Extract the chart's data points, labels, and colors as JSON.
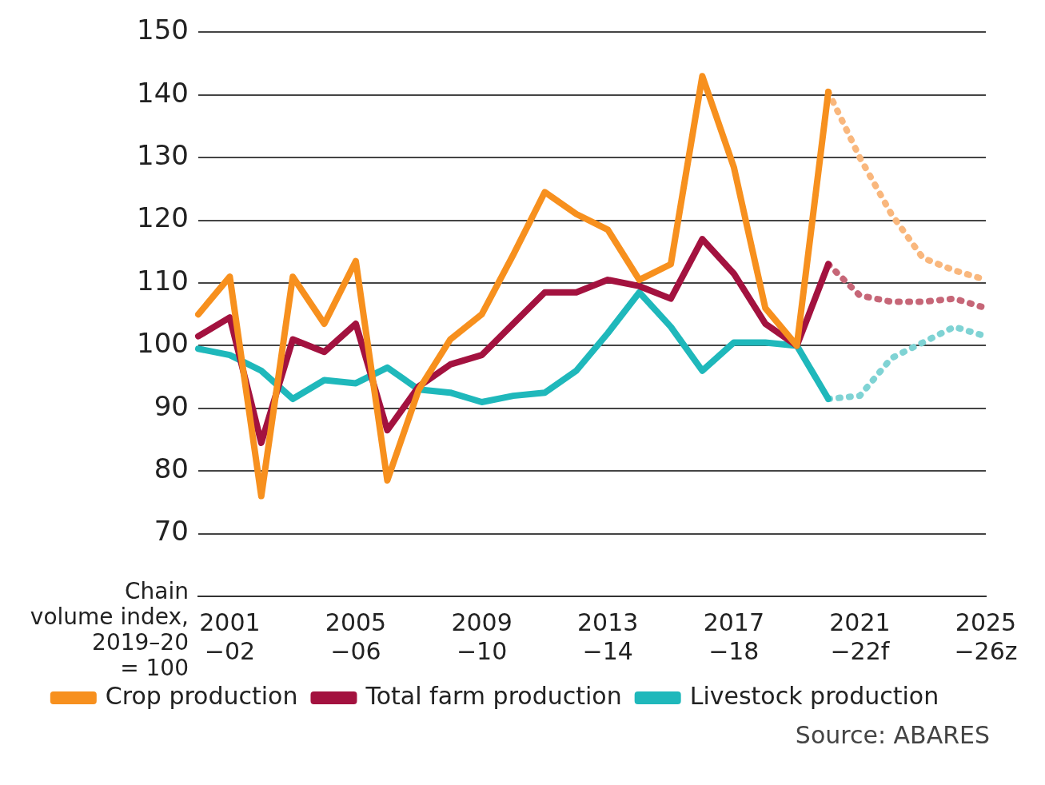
{
  "chart_data": {
    "type": "line",
    "ylabel": "Chain\nvolume index,\n2019–20\n= 100",
    "categories": [
      null,
      "2001\n−02",
      null,
      null,
      null,
      "2005\n−06",
      null,
      null,
      null,
      "2009\n−10",
      null,
      null,
      null,
      "2013\n−14",
      null,
      null,
      null,
      "2017\n−18",
      null,
      null,
      null,
      "2021\n−22f",
      null,
      null,
      null,
      "2025\n−26z"
    ],
    "series": [
      {
        "name": "Crop production",
        "color": "#f7901e",
        "line_style": "solid",
        "values": [
          105,
          111,
          76,
          111,
          103.5,
          113.5,
          78.5,
          93,
          101,
          105,
          114.5,
          124.5,
          121,
          118.5,
          110.5,
          113,
          143,
          128.5,
          106,
          100,
          140.5,
          null,
          null,
          null,
          null,
          null
        ]
      },
      {
        "name": "Total farm production",
        "color": "#a3123f",
        "line_style": "solid",
        "values": [
          101.5,
          104.5,
          84.5,
          101,
          99,
          103.5,
          86.5,
          93.5,
          97,
          98.5,
          103.5,
          108.5,
          108.5,
          110.5,
          109.5,
          107.5,
          117,
          111.5,
          103.5,
          100,
          113,
          null,
          null,
          null,
          null,
          null
        ]
      },
      {
        "name": "Livestock production",
        "color": "#1fb8bb",
        "line_style": "solid",
        "values": [
          99.5,
          98.5,
          96,
          91.5,
          94.5,
          94,
          96.5,
          93,
          92.5,
          91,
          92,
          92.5,
          96,
          102,
          108.5,
          103,
          96,
          100.5,
          100.5,
          100,
          91.5,
          null,
          null,
          null,
          null,
          null
        ]
      },
      {
        "color": "#f9b77d",
        "line_style": "dotted",
        "values": [
          null,
          null,
          null,
          null,
          null,
          null,
          null,
          null,
          null,
          null,
          null,
          null,
          null,
          null,
          null,
          null,
          null,
          null,
          null,
          null,
          140.5,
          130,
          121,
          114,
          112,
          110.5
        ]
      },
      {
        "color": "#c66677",
        "line_style": "dotted",
        "values": [
          null,
          null,
          null,
          null,
          null,
          null,
          null,
          null,
          null,
          null,
          null,
          null,
          null,
          null,
          null,
          null,
          null,
          null,
          null,
          null,
          113,
          108,
          107,
          107,
          107.5,
          106
        ]
      },
      {
        "color": "#7fd3d4",
        "line_style": "dotted",
        "values": [
          null,
          null,
          null,
          null,
          null,
          null,
          null,
          null,
          null,
          null,
          null,
          null,
          null,
          null,
          null,
          null,
          null,
          null,
          null,
          null,
          91.5,
          92,
          98,
          100.5,
          103,
          101.5
        ]
      }
    ],
    "ylim": [
      60,
      150
    ],
    "yticks": [
      70,
      80,
      90,
      100,
      110,
      120,
      130,
      140,
      150
    ],
    "grid": "y",
    "legend": "bottom",
    "marker": "none",
    "annotations": [
      "Source: ABARES"
    ]
  }
}
